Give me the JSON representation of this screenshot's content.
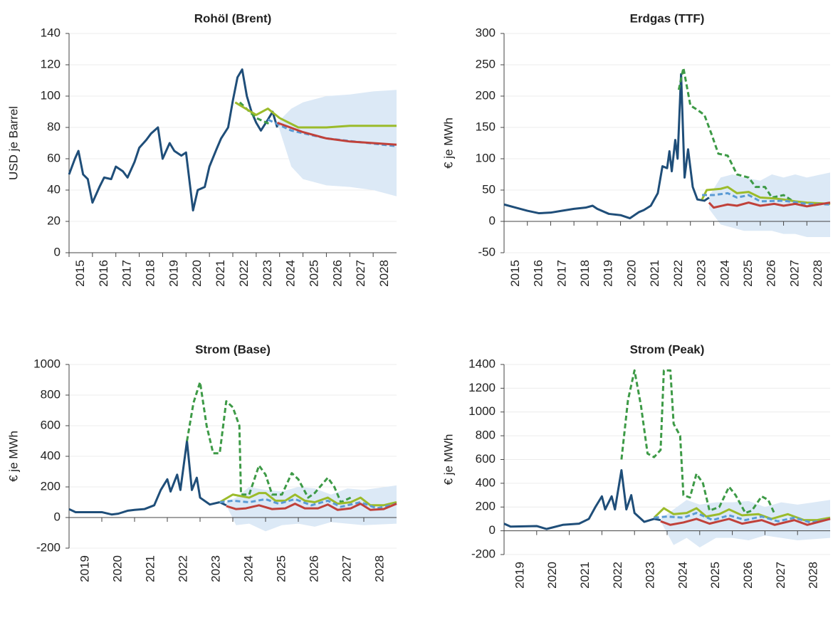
{
  "chart_data": [
    {
      "type": "line",
      "title": "Rohöl (Brent)",
      "y_label": "USD je Barrel",
      "xlim": [
        2015,
        2029
      ],
      "xticks": [
        2015,
        2016,
        2017,
        2018,
        2019,
        2020,
        2021,
        2022,
        2023,
        2024,
        2025,
        2026,
        2027,
        2028
      ],
      "ylim": [
        0,
        140
      ],
      "yticks": [
        0,
        20,
        40,
        60,
        80,
        100,
        120,
        140
      ],
      "grid": true,
      "band": {
        "color": "#dce9f6",
        "x": [
          2023.9,
          2024.5,
          2025,
          2026,
          2027,
          2028,
          2029
        ],
        "upper": [
          83,
          92,
          96,
          100,
          101,
          103,
          104
        ],
        "lower": [
          83,
          55,
          47,
          43,
          42,
          40,
          36
        ]
      },
      "series": [
        {
          "color": "#1f4e79",
          "dash": false,
          "x": [
            2015,
            2015.25,
            2015.4,
            2015.6,
            2015.8,
            2016,
            2016.3,
            2016.5,
            2016.8,
            2017,
            2017.3,
            2017.5,
            2017.8,
            2018,
            2018.3,
            2018.5,
            2018.8,
            2019,
            2019.3,
            2019.5,
            2019.8,
            2020,
            2020.3,
            2020.5,
            2020.8,
            2021,
            2021.3,
            2021.5,
            2021.8,
            2022,
            2022.2,
            2022.4,
            2022.6,
            2022.8,
            2023,
            2023.2,
            2023.5,
            2023.7,
            2023.9
          ],
          "values": [
            50,
            60,
            65,
            50,
            47,
            32,
            42,
            48,
            47,
            55,
            52,
            48,
            58,
            67,
            72,
            76,
            80,
            60,
            70,
            65,
            62,
            64,
            27,
            40,
            42,
            55,
            66,
            73,
            80,
            97,
            112,
            117,
            100,
            90,
            83,
            78,
            85,
            90,
            80
          ]
        },
        {
          "color": "#3d9a46",
          "dash": true,
          "x": [
            2022.3,
            2023,
            2023.6
          ],
          "values": [
            96,
            86,
            82
          ]
        },
        {
          "color": "#9bbb2a",
          "dash": false,
          "x": [
            2022.1,
            2023,
            2023.5,
            2024,
            2024.8,
            2026,
            2027,
            2029
          ],
          "values": [
            96,
            88,
            92,
            86,
            80,
            80,
            81,
            81
          ]
        },
        {
          "color": "#5b9bd5",
          "dash": true,
          "x": [
            2023.5,
            2024.5,
            2026,
            2029
          ],
          "values": [
            85,
            78,
            73,
            68
          ]
        },
        {
          "color": "#c0413a",
          "dash": false,
          "x": [
            2023.9,
            2025,
            2026,
            2027,
            2028,
            2029
          ],
          "values": [
            83,
            77,
            73,
            71,
            70,
            69
          ]
        }
      ]
    },
    {
      "type": "line",
      "title": "Erdgas (TTF)",
      "y_label": "€ je MWh",
      "xlim": [
        2015,
        2029
      ],
      "xticks": [
        2015,
        2016,
        2017,
        2018,
        2019,
        2020,
        2021,
        2022,
        2023,
        2024,
        2025,
        2026,
        2027,
        2028
      ],
      "ylim": [
        -50,
        300
      ],
      "yticks": [
        -50,
        0,
        50,
        100,
        150,
        200,
        250,
        300
      ],
      "grid": true,
      "band": {
        "color": "#dce9f6",
        "x": [
          2023.8,
          2024.3,
          2024.8,
          2025.3,
          2026,
          2026.5,
          2027,
          2027.5,
          2028,
          2029
        ],
        "upper": [
          40,
          70,
          75,
          70,
          65,
          75,
          70,
          75,
          70,
          78
        ],
        "lower": [
          20,
          -5,
          -10,
          -15,
          -15,
          -15,
          -20,
          -20,
          -25,
          -25
        ]
      },
      "series": [
        {
          "color": "#1f4e79",
          "dash": false,
          "x": [
            2015,
            2015.5,
            2016,
            2016.5,
            2017,
            2017.5,
            2018,
            2018.5,
            2018.8,
            2019,
            2019.5,
            2020,
            2020.4,
            2020.8,
            2021,
            2021.3,
            2021.6,
            2021.8,
            2022,
            2022.1,
            2022.2,
            2022.35,
            2022.45,
            2022.6,
            2022.75,
            2022.9,
            2023.1,
            2023.3,
            2023.6,
            2023.8
          ],
          "values": [
            27,
            22,
            17,
            13,
            14,
            17,
            20,
            22,
            25,
            20,
            12,
            10,
            5,
            15,
            18,
            25,
            45,
            88,
            85,
            112,
            80,
            130,
            100,
            235,
            70,
            115,
            55,
            35,
            33,
            38
          ]
        },
        {
          "color": "#3d9a46",
          "dash": true,
          "x": [
            2022.5,
            2022.7,
            2023,
            2023.3,
            2023.6,
            2023.9,
            2024.2,
            2024.6,
            2025,
            2025.5,
            2025.8,
            2026.2,
            2026.5,
            2027,
            2027.5
          ],
          "values": [
            210,
            245,
            185,
            178,
            170,
            140,
            108,
            105,
            75,
            70,
            55,
            55,
            38,
            42,
            30
          ]
        },
        {
          "color": "#9bbb2a",
          "dash": false,
          "x": [
            2023.5,
            2023.7,
            2024.3,
            2024.6,
            2025,
            2025.5,
            2026,
            2026.5,
            2027,
            2027.5,
            2028,
            2029
          ],
          "values": [
            35,
            50,
            52,
            55,
            45,
            47,
            38,
            37,
            35,
            32,
            30,
            28
          ]
        },
        {
          "color": "#5b9bd5",
          "dash": true,
          "x": [
            2023.5,
            2024,
            2024.6,
            2025,
            2025.5,
            2026,
            2027,
            2028,
            2029
          ],
          "values": [
            42,
            42,
            45,
            38,
            42,
            32,
            33,
            28,
            27
          ]
        },
        {
          "color": "#c0413a",
          "dash": false,
          "x": [
            2023.8,
            2024,
            2024.6,
            2025,
            2025.5,
            2026,
            2026.6,
            2027,
            2027.5,
            2028,
            2029
          ],
          "values": [
            30,
            22,
            27,
            25,
            30,
            25,
            28,
            25,
            28,
            24,
            30
          ]
        }
      ]
    },
    {
      "type": "line",
      "title": "Strom (Base)",
      "y_label": "€ je MWh",
      "xlim": [
        2019,
        2029
      ],
      "xticks": [
        2019,
        2020,
        2021,
        2022,
        2023,
        2024,
        2025,
        2026,
        2027,
        2028
      ],
      "ylim": [
        -200,
        1000
      ],
      "yticks": [
        -200,
        0,
        200,
        400,
        600,
        800,
        1000
      ],
      "grid": true,
      "band": {
        "color": "#dce9f6",
        "x": [
          2023.8,
          2024.1,
          2024.5,
          2025,
          2025.5,
          2026,
          2026.5,
          2027,
          2027.5,
          2028,
          2029
        ],
        "upper": [
          100,
          130,
          200,
          180,
          170,
          200,
          190,
          150,
          190,
          180,
          210
        ],
        "lower": [
          80,
          -50,
          -40,
          -90,
          -50,
          -40,
          -60,
          -30,
          -40,
          -50,
          -40
        ]
      },
      "series": [
        {
          "color": "#1f4e79",
          "dash": false,
          "x": [
            2019,
            2019.2,
            2019.5,
            2020,
            2020.3,
            2020.5,
            2020.8,
            2021,
            2021.3,
            2021.6,
            2021.8,
            2022,
            2022.1,
            2022.3,
            2022.4,
            2022.6,
            2022.75,
            2022.9,
            2023,
            2023.3,
            2023.6,
            2023.8
          ],
          "values": [
            55,
            35,
            35,
            35,
            20,
            25,
            45,
            50,
            55,
            80,
            180,
            250,
            170,
            280,
            180,
            500,
            180,
            260,
            130,
            85,
            100,
            80
          ]
        },
        {
          "color": "#3d9a46",
          "dash": true,
          "x": [
            2022.6,
            2022.8,
            2023,
            2023.2,
            2023.4,
            2023.6,
            2023.8,
            2024,
            2024.2,
            2024.25,
            2024.5,
            2024.8,
            2025,
            2025.2,
            2025.5,
            2025.8,
            2026,
            2026.3,
            2026.5,
            2026.9,
            2027.1,
            2027.3,
            2027.6
          ],
          "values": [
            500,
            750,
            885,
            600,
            420,
            420,
            760,
            720,
            600,
            150,
            150,
            340,
            280,
            150,
            150,
            290,
            250,
            130,
            160,
            260,
            200,
            100,
            130
          ]
        },
        {
          "color": "#9bbb2a",
          "dash": false,
          "x": [
            2023.6,
            2024,
            2024.5,
            2024.8,
            2025,
            2025.3,
            2025.6,
            2025.9,
            2026.2,
            2026.5,
            2026.9,
            2027.2,
            2027.6,
            2027.9,
            2028.2,
            2028.6,
            2029
          ],
          "values": [
            100,
            150,
            130,
            160,
            160,
            110,
            110,
            150,
            110,
            100,
            130,
            90,
            100,
            130,
            80,
            80,
            100
          ]
        },
        {
          "color": "#5b9bd5",
          "dash": true,
          "x": [
            2023.6,
            2024,
            2024.5,
            2025,
            2025.4,
            2025.9,
            2026.4,
            2026.9,
            2027.3,
            2027.9,
            2028.4,
            2029
          ],
          "values": [
            100,
            110,
            100,
            120,
            90,
            120,
            80,
            110,
            70,
            100,
            60,
            90
          ]
        },
        {
          "color": "#c0413a",
          "dash": false,
          "x": [
            2023.8,
            2024.1,
            2024.4,
            2024.8,
            2025.2,
            2025.6,
            2025.9,
            2026.2,
            2026.6,
            2026.9,
            2027.2,
            2027.6,
            2027.9,
            2028.2,
            2028.6,
            2029
          ],
          "values": [
            75,
            55,
            60,
            80,
            55,
            60,
            90,
            60,
            60,
            85,
            50,
            60,
            90,
            50,
            55,
            90
          ]
        }
      ]
    },
    {
      "type": "line",
      "title": "Strom (Peak)",
      "y_label": "€ je MWh",
      "xlim": [
        2019,
        2029
      ],
      "xticks": [
        2019,
        2020,
        2021,
        2022,
        2023,
        2024,
        2025,
        2026,
        2027,
        2028
      ],
      "ylim": [
        -200,
        1400
      ],
      "yticks": [
        -200,
        0,
        200,
        400,
        600,
        800,
        1000,
        1200,
        1400
      ],
      "grid": true,
      "band": {
        "color": "#dce9f6",
        "x": [
          2023.8,
          2024.2,
          2024.6,
          2025,
          2025.5,
          2026,
          2026.5,
          2027,
          2027.5,
          2028,
          2029
        ],
        "upper": [
          100,
          180,
          260,
          220,
          240,
          240,
          250,
          200,
          240,
          220,
          260
        ],
        "lower": [
          80,
          -120,
          -60,
          -140,
          -60,
          -60,
          -80,
          -40,
          -60,
          -80,
          -60
        ]
      },
      "series": [
        {
          "color": "#1f4e79",
          "dash": false,
          "x": [
            2019,
            2019.2,
            2020,
            2020.3,
            2020.8,
            2021.3,
            2021.6,
            2021.8,
            2022,
            2022.1,
            2022.3,
            2022.4,
            2022.6,
            2022.75,
            2022.9,
            2023,
            2023.3,
            2023.6,
            2023.8
          ],
          "values": [
            60,
            35,
            40,
            15,
            50,
            60,
            100,
            200,
            290,
            180,
            290,
            180,
            510,
            180,
            300,
            150,
            75,
            100,
            90
          ]
        },
        {
          "color": "#3d9a46",
          "dash": true,
          "x": [
            2022.6,
            2022.8,
            2023,
            2023.2,
            2023.4,
            2023.6,
            2023.8,
            2023.9,
            2024.1,
            2024.2,
            2024.4,
            2024.5,
            2024.7,
            2024.9,
            2025.1,
            2025.3,
            2025.6,
            2025.9,
            2026.1,
            2026.4,
            2026.6,
            2026.9,
            2027.1,
            2027.3
          ],
          "values": [
            600,
            1100,
            1350,
            1050,
            650,
            620,
            680,
            1350,
            1350,
            900,
            800,
            300,
            280,
            480,
            400,
            170,
            200,
            370,
            300,
            150,
            170,
            290,
            260,
            140
          ]
        },
        {
          "color": "#9bbb2a",
          "dash": false,
          "x": [
            2023.6,
            2023.9,
            2024.2,
            2024.6,
            2024.9,
            2025.2,
            2025.6,
            2025.9,
            2026.3,
            2026.8,
            2027.2,
            2027.7,
            2028.2,
            2028.6,
            2029
          ],
          "values": [
            110,
            190,
            140,
            150,
            190,
            120,
            140,
            180,
            130,
            140,
            100,
            140,
            90,
            90,
            110
          ]
        },
        {
          "color": "#5b9bd5",
          "dash": true,
          "x": [
            2023.6,
            2024,
            2024.5,
            2024.9,
            2025.4,
            2025.9,
            2026.4,
            2026.9,
            2027.4,
            2027.9,
            2028.4,
            2029
          ],
          "values": [
            110,
            120,
            110,
            150,
            90,
            130,
            90,
            120,
            80,
            110,
            70,
            100
          ]
        },
        {
          "color": "#c0413a",
          "dash": false,
          "x": [
            2023.8,
            2024.1,
            2024.5,
            2024.9,
            2025.3,
            2025.9,
            2026.3,
            2026.9,
            2027.3,
            2027.9,
            2028.3,
            2029
          ],
          "values": [
            80,
            50,
            70,
            100,
            60,
            100,
            60,
            90,
            50,
            90,
            50,
            100
          ]
        }
      ]
    }
  ]
}
